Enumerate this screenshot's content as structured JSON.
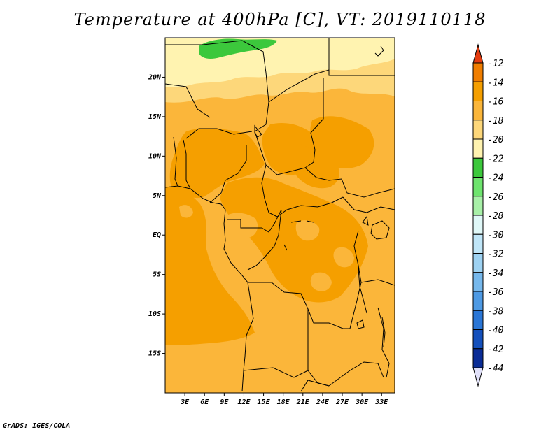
{
  "title": "Temperature at 400hPa [C], VT: 2019110118",
  "credit": "GrADS: IGES/COLA",
  "map": {
    "lon_range": [
      0,
      35
    ],
    "lat_range": [
      -20,
      25
    ],
    "lat_ticks": [
      {
        "value": 20,
        "label": "20N"
      },
      {
        "value": 15,
        "label": "15N"
      },
      {
        "value": 10,
        "label": "10N"
      },
      {
        "value": 5,
        "label": "5N"
      },
      {
        "value": 0,
        "label": "EQ"
      },
      {
        "value": -5,
        "label": "5S"
      },
      {
        "value": -10,
        "label": "10S"
      },
      {
        "value": -15,
        "label": "15S"
      }
    ],
    "lon_ticks": [
      {
        "value": 3,
        "label": "3E"
      },
      {
        "value": 6,
        "label": "6E"
      },
      {
        "value": 9,
        "label": "9E"
      },
      {
        "value": 12,
        "label": "12E"
      },
      {
        "value": 15,
        "label": "15E"
      },
      {
        "value": 18,
        "label": "18E"
      },
      {
        "value": 21,
        "label": "21E"
      },
      {
        "value": 24,
        "label": "24E"
      },
      {
        "value": 27,
        "label": "27E"
      },
      {
        "value": 30,
        "label": "30E"
      },
      {
        "value": 33,
        "label": "33E"
      }
    ]
  },
  "colorbar": {
    "labels": [
      "-12",
      "-14",
      "-16",
      "-18",
      "-20",
      "-22",
      "-24",
      "-26",
      "-28",
      "-30",
      "-32",
      "-34",
      "-36",
      "-38",
      "-40",
      "-42",
      "-44"
    ],
    "colors": [
      "#e85a10",
      "#f07e00",
      "#f59f00",
      "#fbb63a",
      "#fdd77a",
      "#fff3b0",
      "#3cc83c",
      "#6ee46e",
      "#a8f0a8",
      "#e0f8f8",
      "#c0e6f8",
      "#9ed2f2",
      "#76b8ec",
      "#4e9ae4",
      "#2a76d6",
      "#1450bc",
      "#0a2c96",
      "#08107a"
    ],
    "top_arrow_color": "#e43c10",
    "bottom_arrow_color": "#e0e0f8"
  },
  "fields": [
    {
      "name": "-18 to -16",
      "color": "#fbb63a"
    },
    {
      "name": "-16 to -14",
      "color": "#f59f00"
    },
    {
      "name": "-20 to -18",
      "color": "#fdd77a"
    },
    {
      "name": "-22 to -20",
      "color": "#fff3b0"
    },
    {
      "name": "-24 to -22",
      "color": "#3cc83c"
    }
  ]
}
